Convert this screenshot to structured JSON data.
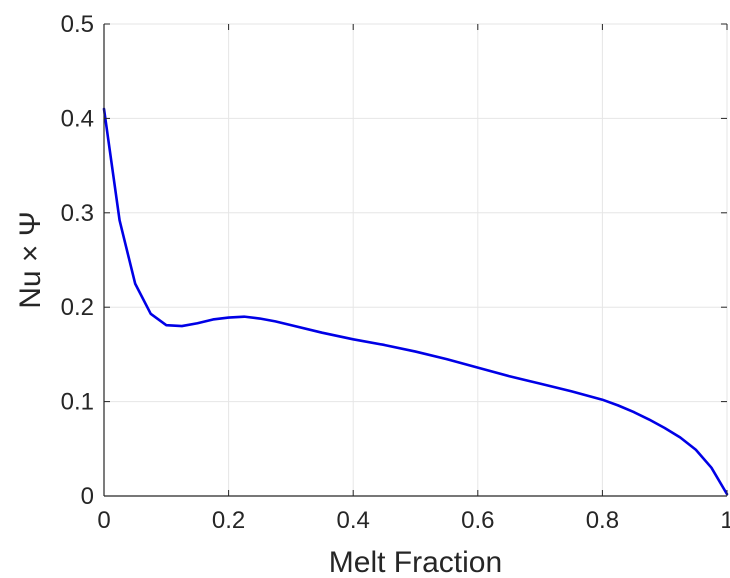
{
  "chart_data": {
    "type": "line",
    "title": "",
    "xlabel": "Melt Fraction",
    "ylabel": "Nu × Ψ",
    "xlim": [
      0,
      1
    ],
    "ylim": [
      0,
      0.5
    ],
    "xticks": [
      "0",
      "0.2",
      "0.4",
      "0.6",
      "0.8",
      "1"
    ],
    "yticks": [
      "0",
      "0.1",
      "0.2",
      "0.3",
      "0.4",
      "0.5"
    ],
    "grid": true,
    "legend": "none",
    "colors": {
      "line": "#0000e6",
      "grid": "#e6e6e6",
      "axis": "#262626"
    },
    "series": [
      {
        "x": [
          0,
          0.025,
          0.05,
          0.075,
          0.1,
          0.125,
          0.15,
          0.175,
          0.2,
          0.225,
          0.25,
          0.275,
          0.3,
          0.35,
          0.4,
          0.45,
          0.5,
          0.55,
          0.6,
          0.65,
          0.7,
          0.75,
          0.8,
          0.825,
          0.85,
          0.875,
          0.9,
          0.925,
          0.95,
          0.975,
          1.0
        ],
        "y": [
          0.41,
          0.292,
          0.225,
          0.193,
          0.181,
          0.18,
          0.183,
          0.187,
          0.189,
          0.19,
          0.188,
          0.185,
          0.181,
          0.173,
          0.166,
          0.16,
          0.153,
          0.145,
          0.136,
          0.127,
          0.119,
          0.111,
          0.102,
          0.096,
          0.089,
          0.081,
          0.072,
          0.062,
          0.049,
          0.03,
          0.002
        ]
      }
    ]
  }
}
